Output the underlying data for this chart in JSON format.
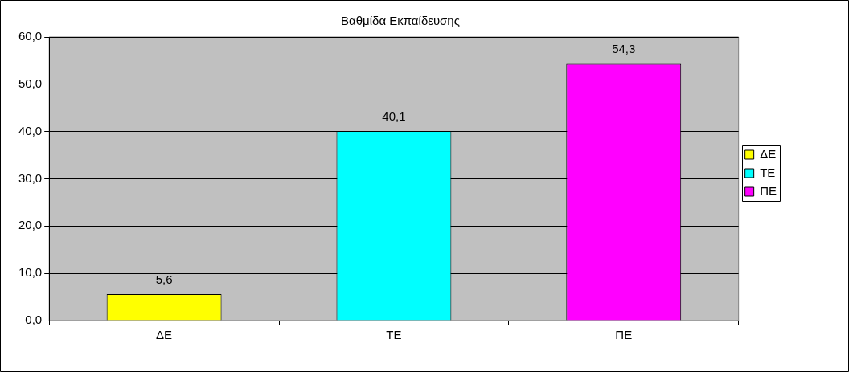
{
  "chart_data": {
    "type": "bar",
    "title": "Βαθμίδα Εκπαίδευσης",
    "categories": [
      "ΔΕ",
      "ΤΕ",
      "ΠΕ"
    ],
    "series": [
      {
        "name": "ΔΕ",
        "color": "#ffff00",
        "values": [
          5.6,
          null,
          null
        ],
        "value_labels": [
          "5,6",
          null,
          null
        ]
      },
      {
        "name": "ΤΕ",
        "color": "#00ffff",
        "values": [
          null,
          40.1,
          null
        ],
        "value_labels": [
          null,
          "40,1",
          null
        ]
      },
      {
        "name": "ΠΕ",
        "color": "#ff00ff",
        "values": [
          null,
          null,
          54.3
        ],
        "value_labels": [
          null,
          null,
          "54,3"
        ]
      }
    ],
    "ylim": [
      0,
      60
    ],
    "yticks": [
      {
        "value": 0,
        "label": "0,0"
      },
      {
        "value": 10,
        "label": "10,0"
      },
      {
        "value": 20,
        "label": "20,0"
      },
      {
        "value": 30,
        "label": "30,0"
      },
      {
        "value": 40,
        "label": "40,0"
      },
      {
        "value": 50,
        "label": "50,0"
      },
      {
        "value": 60,
        "label": "60,0"
      }
    ],
    "grid": "y",
    "legend": "right"
  }
}
